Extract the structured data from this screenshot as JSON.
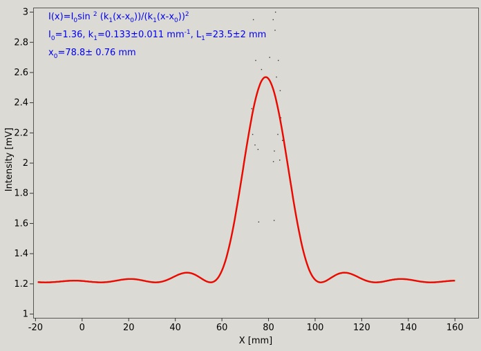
{
  "chart_data": {
    "type": "scatter",
    "xlabel": "X [mm]",
    "ylabel": "Intensity [mV]",
    "xlim": [
      -21,
      170
    ],
    "ylim": [
      0.975,
      3.03
    ],
    "x_ticks": [
      -20,
      0,
      20,
      40,
      60,
      80,
      100,
      120,
      140,
      160
    ],
    "x_tick_labels": [
      "-20",
      "0",
      "20",
      "40",
      "60",
      "80",
      "100",
      "120",
      "140",
      "160"
    ],
    "y_ticks": [
      1,
      1.2,
      1.4,
      1.6,
      1.8,
      2,
      2.2,
      2.4,
      2.6,
      2.8,
      3
    ],
    "y_tick_labels": [
      "1",
      "1.2",
      "1.4",
      "1.6",
      "1.8",
      "2",
      "2.2",
      "2.4",
      "2.6",
      "2.8",
      "3"
    ],
    "grid": false,
    "annotations": {
      "formula": "I(x)=I0sin 2 (k1(x-x0))/(k1(x-x0))2",
      "params_line": "I0=1.36,  k1=0.133±0.011 mm-1,   L1=23.5±2 mm",
      "x0_line": "x0=78.8±   0.76 mm"
    },
    "fit_params": {
      "I0": 1.36,
      "k1": 0.133,
      "x0": 78.8,
      "baseline": 1.21
    },
    "x_range": [
      -19,
      160
    ],
    "series": [
      {
        "role": "measured",
        "color": "#2e7d1f"
      },
      {
        "role": "fit",
        "color": "#ff0000"
      },
      {
        "role": "scatter",
        "color": "#333333",
        "points": [
          [
            73.5,
            2.95
          ],
          [
            74.5,
            2.68
          ],
          [
            75.0,
            2.45
          ],
          [
            72.8,
            2.36
          ],
          [
            73.2,
            2.19
          ],
          [
            74.2,
            2.12
          ],
          [
            75.5,
            2.09
          ],
          [
            82.0,
            2.95
          ],
          [
            83.0,
            3.0
          ],
          [
            82.8,
            2.88
          ],
          [
            84.2,
            2.68
          ],
          [
            83.4,
            2.57
          ],
          [
            85.0,
            2.48
          ],
          [
            85.3,
            2.3
          ],
          [
            84.0,
            2.19
          ],
          [
            82.5,
            2.08
          ],
          [
            84.8,
            2.02
          ],
          [
            82.1,
            2.01
          ],
          [
            75.8,
            1.61
          ],
          [
            82.4,
            1.62
          ],
          [
            71.5,
            2.2
          ],
          [
            86.0,
            2.15
          ],
          [
            77.0,
            2.62
          ],
          [
            80.5,
            2.7
          ]
        ]
      }
    ]
  }
}
